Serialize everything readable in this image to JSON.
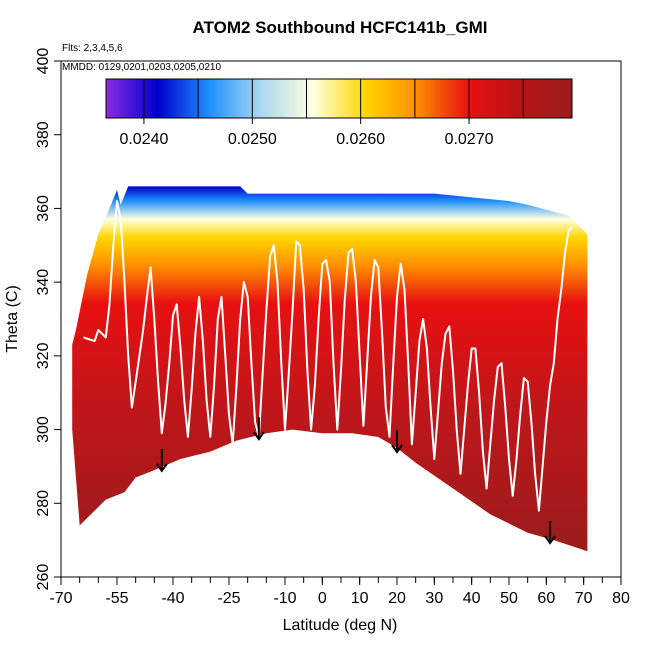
{
  "chart_data": {
    "type": "heatmap",
    "title": "ATOM2 Southbound HCFC141b_GMI",
    "annotations": [
      "Flts: 2,3,4,5,6",
      "MMDD: 0129,0201,0203,0205,0210"
    ],
    "xlabel": "Latitude (deg N)",
    "ylabel": "Theta (C)",
    "xlim": [
      -70,
      80
    ],
    "ylim": [
      260,
      400
    ],
    "x_ticks": [
      -70,
      -55,
      -40,
      -25,
      -10,
      0,
      10,
      20,
      30,
      40,
      50,
      60,
      70,
      80
    ],
    "y_ticks": [
      260,
      280,
      300,
      320,
      340,
      360,
      380,
      400
    ],
    "colorbar": {
      "range": [
        0.02365,
        0.02795
      ],
      "tick_values": [
        0.024,
        0.025,
        0.026,
        0.027
      ],
      "tick_labels": [
        "0.0240",
        "0.0250",
        "0.0260",
        "0.0270"
      ],
      "colors": [
        "#8a2be2",
        "#0000cd",
        "#1e90ff",
        "#add8f0",
        "#ffffe0",
        "#ffd700",
        "#ff8c00",
        "#e81010",
        "#b81414",
        "#9a1c1c"
      ]
    },
    "arrow_latitudes": [
      -43,
      -17,
      20,
      61
    ],
    "surface_boundary": [
      [
        -65,
        274
      ],
      [
        -58,
        281
      ],
      [
        -53,
        283
      ],
      [
        -50,
        287
      ],
      [
        -45,
        289
      ],
      [
        -38,
        292
      ],
      [
        -30,
        294
      ],
      [
        -23,
        297
      ],
      [
        -15,
        299
      ],
      [
        -8,
        300
      ],
      [
        0,
        299
      ],
      [
        8,
        299
      ],
      [
        15,
        298
      ],
      [
        20,
        295
      ],
      [
        25,
        291
      ],
      [
        35,
        284
      ],
      [
        45,
        277
      ],
      [
        55,
        272
      ],
      [
        62,
        270
      ],
      [
        71,
        267
      ]
    ],
    "tropopause_boundary": [
      [
        -67,
        300
      ],
      [
        -67,
        323
      ],
      [
        -66,
        327
      ],
      [
        -63,
        342
      ],
      [
        -60,
        353
      ],
      [
        -57,
        360
      ],
      [
        -55,
        365
      ],
      [
        -54,
        361
      ],
      [
        -52,
        366
      ],
      [
        -38,
        366
      ],
      [
        -22,
        366
      ],
      [
        -20,
        364
      ],
      [
        -10,
        364
      ],
      [
        0,
        364
      ],
      [
        10,
        364
      ],
      [
        20,
        364
      ],
      [
        30,
        364
      ],
      [
        40,
        363
      ],
      [
        50,
        362
      ],
      [
        55,
        361
      ],
      [
        66,
        358
      ],
      [
        71,
        353
      ],
      [
        71,
        320
      ]
    ],
    "flight_track": [
      [
        -64,
        325
      ],
      [
        -61,
        324
      ],
      [
        -60,
        327
      ],
      [
        -59,
        326
      ],
      [
        -58,
        325
      ],
      [
        -57,
        334
      ],
      [
        -56,
        350
      ],
      [
        -55,
        362
      ],
      [
        -54,
        357
      ],
      [
        -53,
        340
      ],
      [
        -52,
        320
      ],
      [
        -51,
        306
      ],
      [
        -50,
        313
      ],
      [
        -49,
        320
      ],
      [
        -48,
        327
      ],
      [
        -47,
        336
      ],
      [
        -46,
        344
      ],
      [
        -45,
        330
      ],
      [
        -44,
        313
      ],
      [
        -43,
        299
      ],
      [
        -42,
        307
      ],
      [
        -41,
        318
      ],
      [
        -40,
        331
      ],
      [
        -39,
        334
      ],
      [
        -38,
        322
      ],
      [
        -37,
        308
      ],
      [
        -36,
        298
      ],
      [
        -35,
        311
      ],
      [
        -34,
        326
      ],
      [
        -33,
        336
      ],
      [
        -32,
        324
      ],
      [
        -31,
        308
      ],
      [
        -30,
        298
      ],
      [
        -29,
        312
      ],
      [
        -28,
        330
      ],
      [
        -27,
        336
      ],
      [
        -26,
        320
      ],
      [
        -25,
        304
      ],
      [
        -24,
        296
      ],
      [
        -23,
        312
      ],
      [
        -22,
        330
      ],
      [
        -21,
        340
      ],
      [
        -20,
        336
      ],
      [
        -19,
        318
      ],
      [
        -18,
        302
      ],
      [
        -17,
        298
      ],
      [
        -16,
        315
      ],
      [
        -15,
        332
      ],
      [
        -14,
        347
      ],
      [
        -13,
        350
      ],
      [
        -12,
        340
      ],
      [
        -11,
        318
      ],
      [
        -10,
        300
      ],
      [
        -9,
        315
      ],
      [
        -8,
        332
      ],
      [
        -7,
        351
      ],
      [
        -6,
        350
      ],
      [
        -5,
        338
      ],
      [
        -4,
        316
      ],
      [
        -3,
        300
      ],
      [
        -2,
        312
      ],
      [
        -1,
        330
      ],
      [
        0,
        345
      ],
      [
        1,
        346
      ],
      [
        2,
        340
      ],
      [
        3,
        318
      ],
      [
        4,
        300
      ],
      [
        5,
        316
      ],
      [
        6,
        335
      ],
      [
        7,
        348
      ],
      [
        8,
        349
      ],
      [
        9,
        340
      ],
      [
        10,
        320
      ],
      [
        11,
        301
      ],
      [
        12,
        318
      ],
      [
        13,
        336
      ],
      [
        14,
        346
      ],
      [
        15,
        344
      ],
      [
        16,
        326
      ],
      [
        17,
        306
      ],
      [
        18,
        298
      ],
      [
        19,
        318
      ],
      [
        20,
        336
      ],
      [
        21,
        345
      ],
      [
        22,
        338
      ],
      [
        23,
        318
      ],
      [
        24,
        296
      ],
      [
        25,
        310
      ],
      [
        26,
        324
      ],
      [
        27,
        330
      ],
      [
        28,
        322
      ],
      [
        29,
        306
      ],
      [
        30,
        292
      ],
      [
        31,
        305
      ],
      [
        32,
        318
      ],
      [
        33,
        326
      ],
      [
        34,
        328
      ],
      [
        35,
        316
      ],
      [
        36,
        300
      ],
      [
        37,
        288
      ],
      [
        38,
        300
      ],
      [
        39,
        312
      ],
      [
        40,
        322
      ],
      [
        41,
        322
      ],
      [
        42,
        310
      ],
      [
        43,
        294
      ],
      [
        44,
        284
      ],
      [
        45,
        296
      ],
      [
        46,
        308
      ],
      [
        47,
        317
      ],
      [
        48,
        318
      ],
      [
        49,
        306
      ],
      [
        50,
        292
      ],
      [
        51,
        282
      ],
      [
        52,
        292
      ],
      [
        53,
        304
      ],
      [
        54,
        314
      ],
      [
        55,
        313
      ],
      [
        56,
        302
      ],
      [
        57,
        288
      ],
      [
        58,
        278
      ],
      [
        59,
        290
      ],
      [
        60,
        302
      ],
      [
        61,
        312
      ],
      [
        62,
        318
      ],
      [
        63,
        330
      ],
      [
        64,
        338
      ],
      [
        65,
        348
      ],
      [
        66,
        354
      ],
      [
        67,
        355
      ]
    ]
  }
}
